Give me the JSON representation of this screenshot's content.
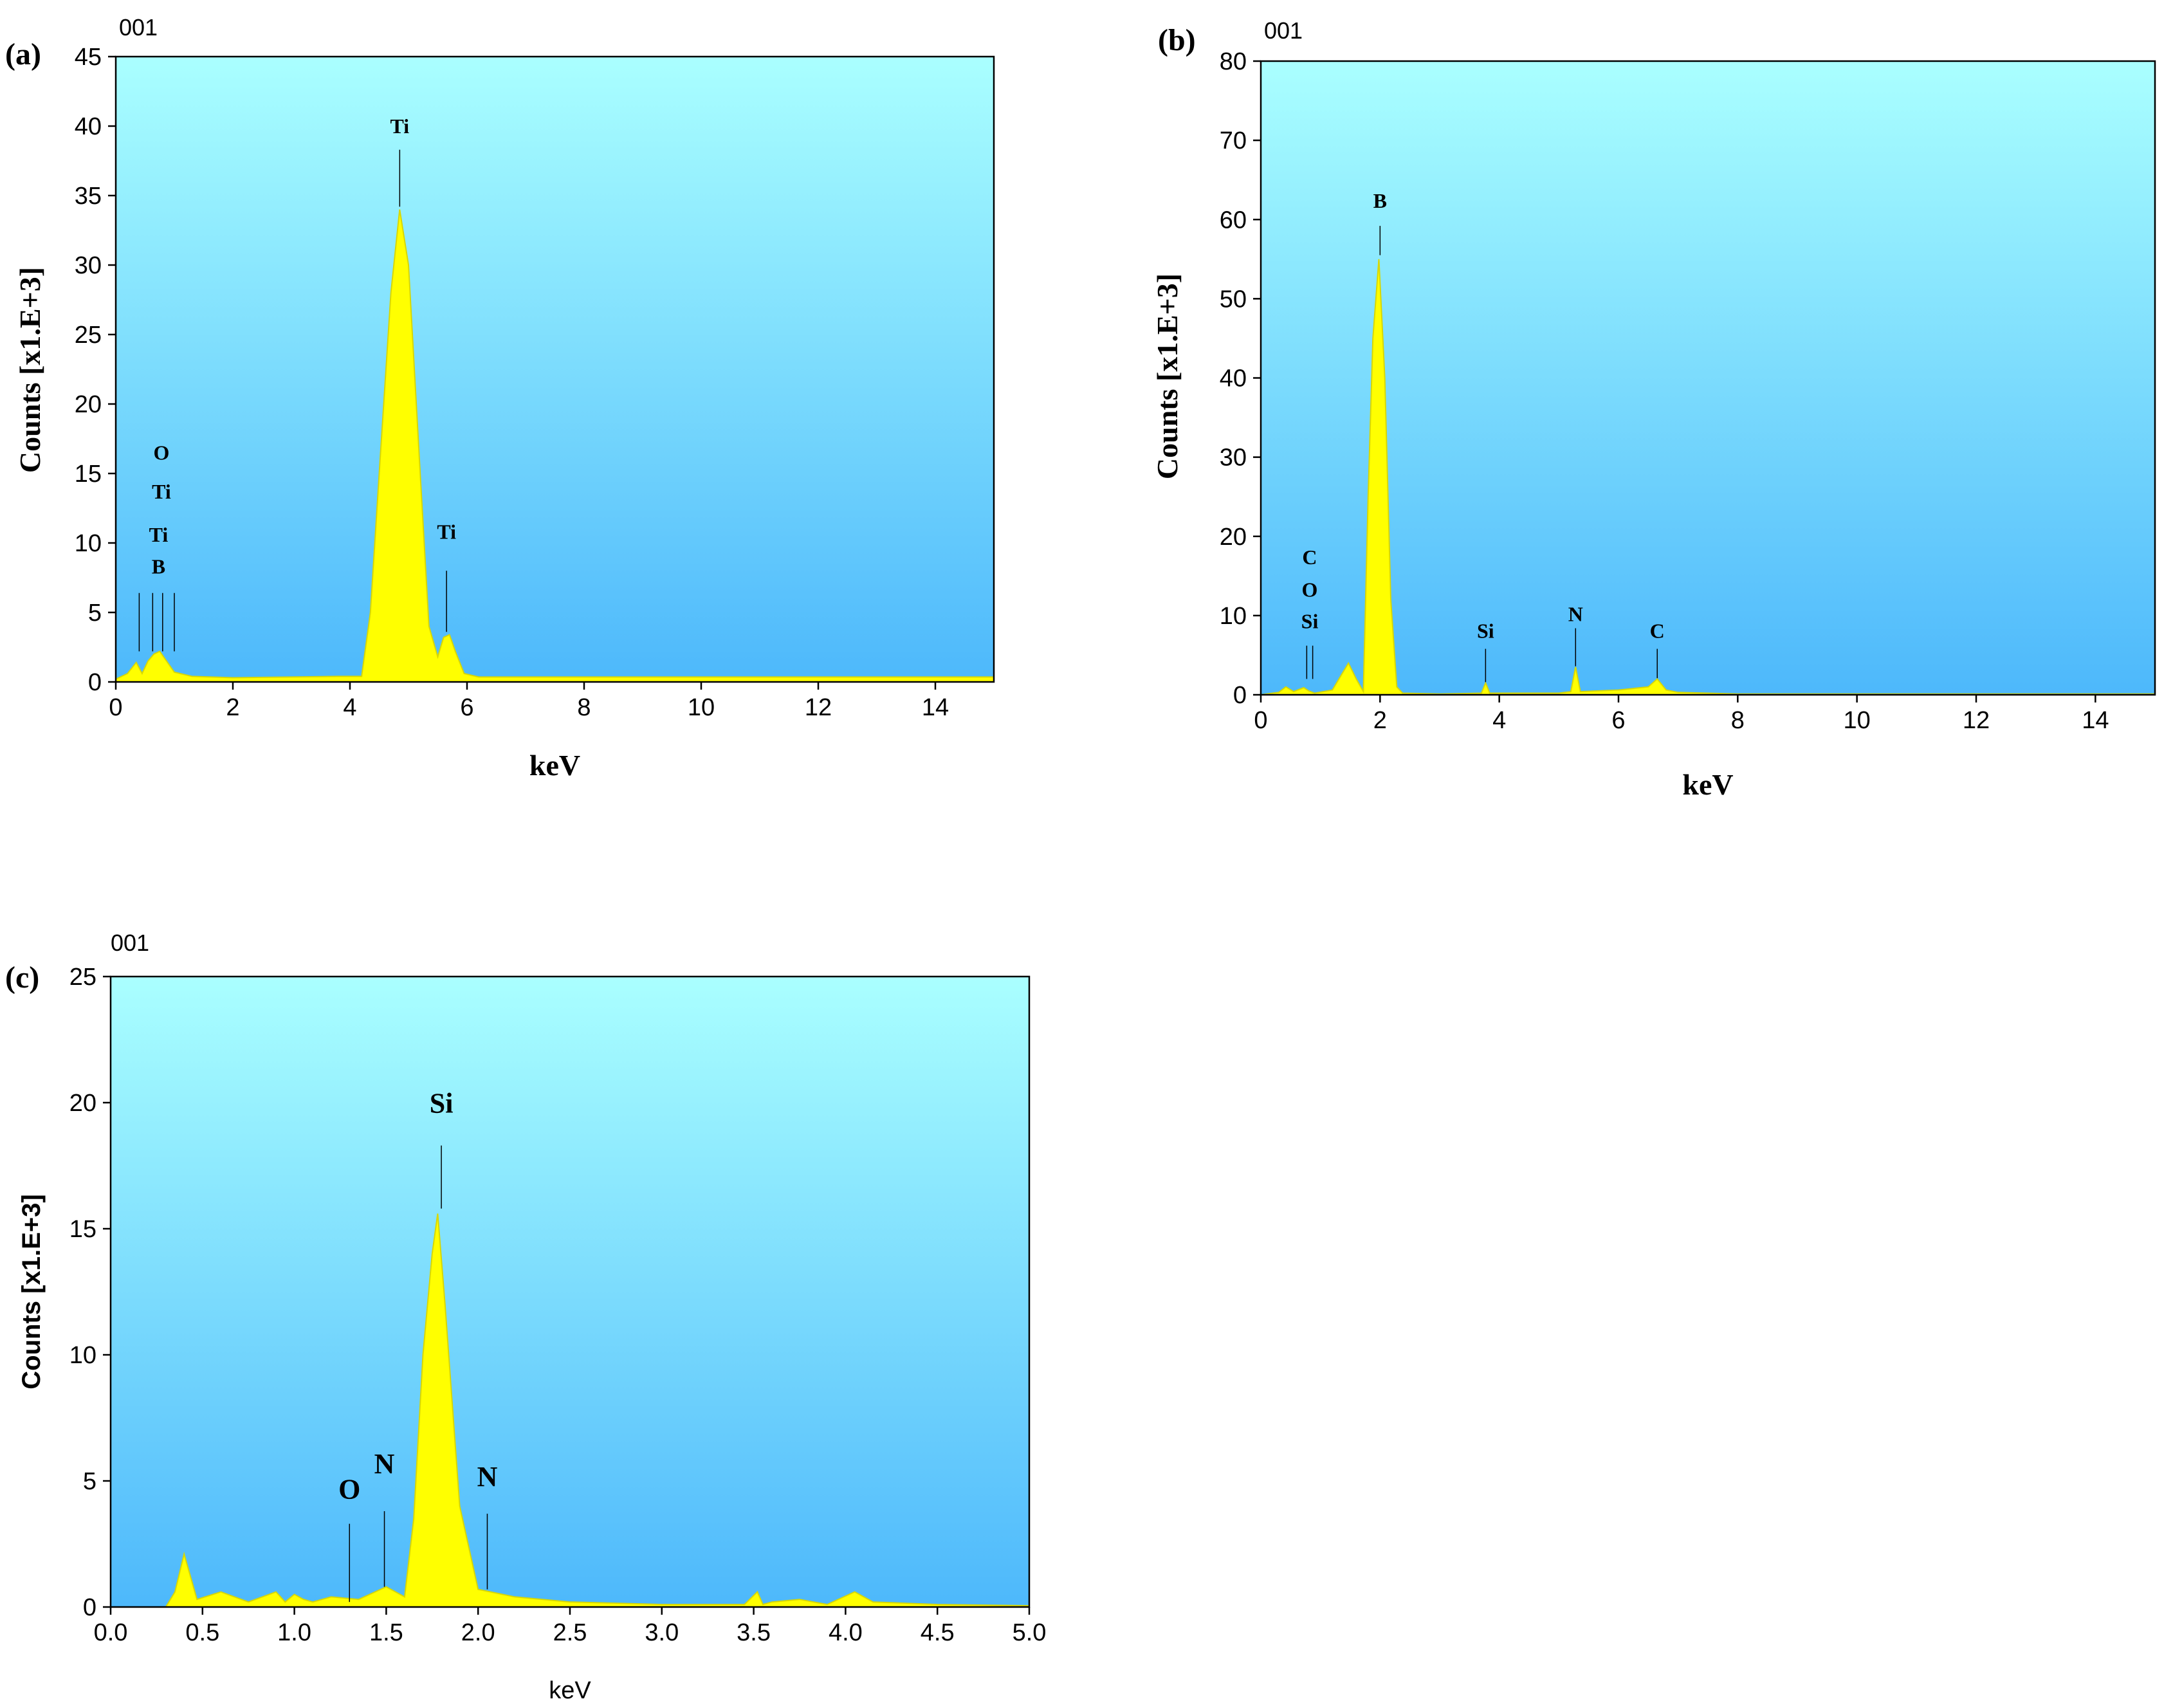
{
  "colors": {
    "bg_top": "#aaffff",
    "bg_bottom": "#4db8fb",
    "fill": "#ffff00",
    "stroke": "#d8d800"
  },
  "chart_data": [
    {
      "id": "a",
      "type": "area",
      "panel_label": "(a)",
      "corner_label": "001",
      "xlabel": "keV",
      "ylabel": "Counts [x1.E+3]",
      "xlim": [
        0,
        15
      ],
      "ylim": [
        0,
        45
      ],
      "xticks": [
        "0",
        "2",
        "4",
        "6",
        "8",
        "10",
        "12",
        "14"
      ],
      "yticks": [
        "0",
        "5",
        "10",
        "15",
        "20",
        "25",
        "30",
        "35",
        "40",
        "45"
      ],
      "series": [
        {
          "name": "spectrum",
          "x": [
            0,
            0.2,
            0.35,
            0.45,
            0.55,
            0.65,
            0.75,
            0.85,
            1.0,
            1.3,
            2.0,
            3.0,
            3.8,
            4.2,
            4.35,
            4.5,
            4.7,
            4.85,
            5.0,
            5.2,
            5.35,
            5.5,
            5.6,
            5.7,
            5.8,
            5.95,
            6.2,
            7,
            8,
            10,
            12,
            15
          ],
          "y": [
            0.2,
            0.6,
            1.4,
            0.6,
            1.5,
            2.0,
            2.2,
            1.6,
            0.7,
            0.4,
            0.3,
            0.35,
            0.4,
            0.4,
            5,
            15,
            28,
            34,
            30,
            15,
            4,
            1.8,
            3.2,
            3.4,
            2.2,
            0.6,
            0.35,
            0.35,
            0.35,
            0.35,
            0.35,
            0.35
          ]
        }
      ],
      "annotations": [
        {
          "text": "Ti",
          "x": 4.85,
          "label_y": 39.5,
          "line_top": 38.3,
          "line_bottom": 34.2
        },
        {
          "text": "Ti",
          "x": 5.65,
          "label_y": 10.3,
          "line_top": 8.0,
          "line_bottom": 3.6
        },
        {
          "text": "O",
          "x": 0.78,
          "label_y": 16.0,
          "line": false
        },
        {
          "text": "Ti",
          "x": 0.78,
          "label_y": 13.2,
          "line": false
        },
        {
          "text": "Ti",
          "x": 0.73,
          "label_y": 10.1,
          "line": false
        },
        {
          "text": "B",
          "x": 0.73,
          "label_y": 7.8,
          "line": false
        }
      ],
      "small_lines": [
        {
          "x": 0.4,
          "top": 6.4,
          "bottom": 2.2
        },
        {
          "x": 0.63,
          "top": 6.4,
          "bottom": 2.2
        },
        {
          "x": 0.8,
          "top": 6.4,
          "bottom": 2.2
        },
        {
          "x": 1.0,
          "top": 6.4,
          "bottom": 2.2
        }
      ]
    },
    {
      "id": "b",
      "type": "area",
      "panel_label": "(b)",
      "corner_label": "001",
      "xlabel": "keV",
      "ylabel": "Counts [x1.E+3]",
      "xlim": [
        0,
        15
      ],
      "ylim": [
        0,
        80
      ],
      "xticks": [
        "0",
        "2",
        "4",
        "6",
        "8",
        "10",
        "12",
        "14"
      ],
      "yticks": [
        "0",
        "10",
        "20",
        "30",
        "40",
        "50",
        "60",
        "70",
        "80"
      ],
      "series": [
        {
          "name": "spectrum",
          "x": [
            0,
            0.3,
            0.42,
            0.55,
            0.72,
            0.8,
            0.9,
            1.2,
            1.35,
            1.47,
            1.6,
            1.72,
            1.8,
            1.88,
            1.98,
            2.08,
            2.18,
            2.28,
            2.38,
            3.0,
            3.7,
            3.77,
            3.84,
            5.0,
            5.2,
            5.28,
            5.36,
            6.0,
            6.5,
            6.65,
            6.8,
            7,
            8,
            10,
            12,
            15
          ],
          "y": [
            0,
            0.3,
            1.0,
            0.4,
            0.9,
            0.5,
            0.2,
            0.6,
            2.5,
            4.0,
            2.0,
            0.4,
            25,
            45,
            55,
            40,
            12,
            1.0,
            0.2,
            0.1,
            0.2,
            1.5,
            0.2,
            0.2,
            0.4,
            3.5,
            0.4,
            0.6,
            1.0,
            2.0,
            0.6,
            0.3,
            0.1,
            0.1,
            0.1,
            0.1
          ]
        }
      ],
      "annotations": [
        {
          "text": "B",
          "x": 2.0,
          "label_y": 61.5,
          "line_top": 59.2,
          "line_bottom": 55.5
        },
        {
          "text": "Si",
          "x": 3.77,
          "label_y": 7.2,
          "line_top": 5.8,
          "line_bottom": 1.6
        },
        {
          "text": "N",
          "x": 5.28,
          "label_y": 9.3,
          "line_top": 8.4,
          "line_bottom": 3.6
        },
        {
          "text": "C",
          "x": 6.65,
          "label_y": 7.2,
          "line_top": 5.8,
          "line_bottom": 2.1
        },
        {
          "text": "C",
          "x": 0.82,
          "label_y": 16.5,
          "line": false
        },
        {
          "text": "O",
          "x": 0.82,
          "label_y": 12.4,
          "line": false
        },
        {
          "text": "Si",
          "x": 0.82,
          "label_y": 8.4,
          "line": false
        }
      ],
      "small_lines": [
        {
          "x": 0.77,
          "top": 6.2,
          "bottom": 2.0
        },
        {
          "x": 0.87,
          "top": 6.2,
          "bottom": 2.0
        }
      ]
    },
    {
      "id": "c",
      "type": "area",
      "panel_label": "(c)",
      "corner_label": "001",
      "xlabel": "keV",
      "ylabel": "Counts [x1.E+3]",
      "xlim": [
        0,
        5
      ],
      "ylim": [
        0,
        25
      ],
      "xticks": [
        "0.0",
        "0.5",
        "1.0",
        "1.5",
        "2.0",
        "2.5",
        "3.0",
        "3.5",
        "4.0",
        "4.5",
        "5.0"
      ],
      "yticks": [
        "0",
        "5",
        "10",
        "15",
        "20",
        "25"
      ],
      "series": [
        {
          "name": "spectrum",
          "x": [
            0,
            0.3,
            0.35,
            0.4,
            0.47,
            0.6,
            0.75,
            0.9,
            0.95,
            1.0,
            1.05,
            1.1,
            1.2,
            1.35,
            1.5,
            1.6,
            1.65,
            1.7,
            1.75,
            1.78,
            1.82,
            1.9,
            2.0,
            2.2,
            2.5,
            3.0,
            3.45,
            3.52,
            3.55,
            3.6,
            3.75,
            3.9,
            4.05,
            4.15,
            4.5,
            5.0
          ],
          "y": [
            0,
            0,
            0.6,
            2.1,
            0.3,
            0.6,
            0.2,
            0.6,
            0.2,
            0.5,
            0.3,
            0.2,
            0.4,
            0.3,
            0.8,
            0.4,
            3.5,
            10,
            14,
            15.6,
            12,
            4,
            0.7,
            0.4,
            0.2,
            0.1,
            0.1,
            0.6,
            0.1,
            0.2,
            0.3,
            0.1,
            0.6,
            0.2,
            0.1,
            0.05
          ]
        }
      ],
      "annotations": [
        {
          "text": "Si",
          "x": 1.8,
          "label_y": 19.6,
          "line_top": 18.3,
          "line_bottom": 15.8
        },
        {
          "text": "O",
          "x": 1.3,
          "label_y": 4.3,
          "line_top": 3.3,
          "line_bottom": 0.2
        },
        {
          "text": "N",
          "x": 1.49,
          "label_y": 5.3,
          "line_top": 3.8,
          "line_bottom": 0.8
        },
        {
          "text": "N",
          "x": 2.05,
          "label_y": 4.8,
          "line_top": 3.7,
          "line_bottom": 0.7
        }
      ],
      "small_lines": []
    }
  ]
}
